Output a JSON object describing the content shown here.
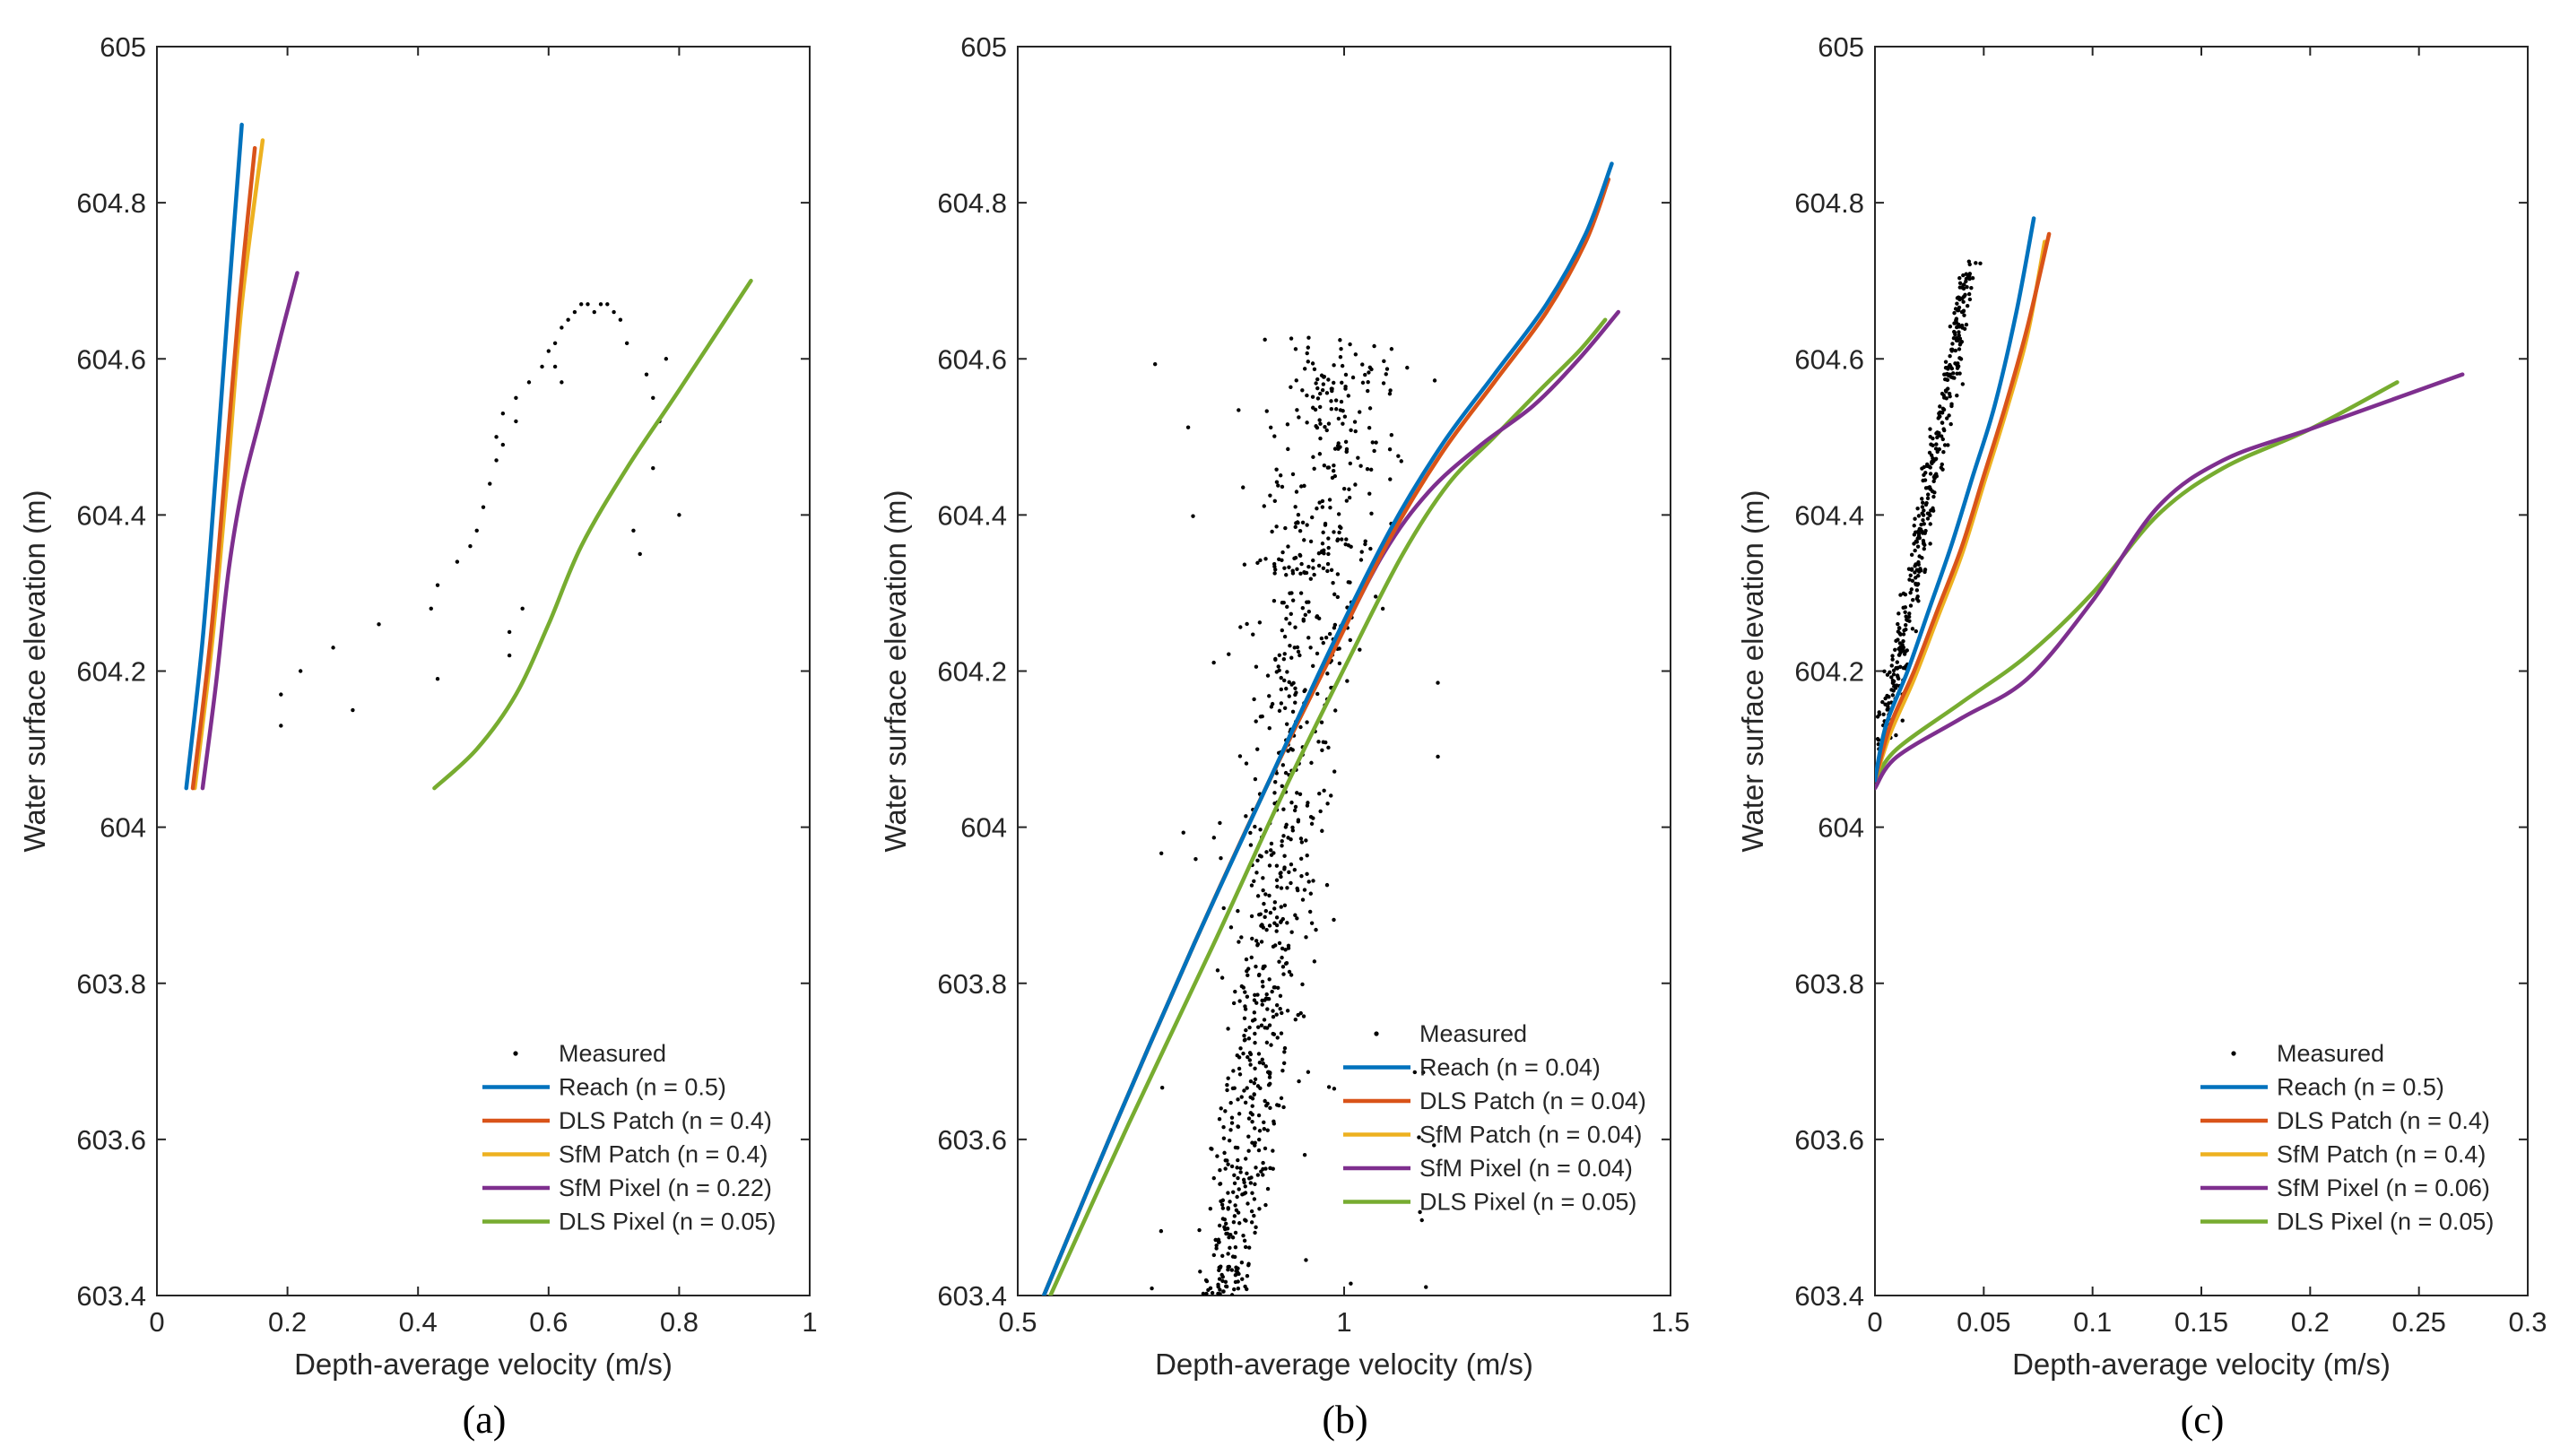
{
  "colors": {
    "measured": "#000000",
    "reach": "#0072BD",
    "dls_patch": "#D95319",
    "sfm_patch": "#EDB120",
    "sfm_pixel": "#7E2F8E",
    "dls_pixel": "#77AC30",
    "axis": "#262626"
  },
  "chart_data": [
    {
      "type": "line",
      "panel_label": "(a)",
      "xlabel": "Depth-average velocity (m/s)",
      "ylabel": "Water surface elevation (m)",
      "xlim": [
        0,
        1
      ],
      "ylim": [
        603.4,
        605
      ],
      "xticks": [
        0,
        0.2,
        0.4,
        0.6,
        0.8,
        1
      ],
      "xtick_labels": [
        "0",
        "0.2",
        "0.4",
        "0.6",
        "0.8",
        "1"
      ],
      "yticks": [
        603.4,
        603.6,
        603.8,
        604,
        604.2,
        604.4,
        604.6,
        604.8,
        605
      ],
      "ytick_labels": [
        "603.4",
        "603.6",
        "603.8",
        "604",
        "604.2",
        "604.4",
        "604.6",
        "604.8",
        "605"
      ],
      "legend_position": "bottom-right",
      "scatter": {
        "name": "Measured",
        "x": [
          0.19,
          0.19,
          0.22,
          0.27,
          0.3,
          0.34,
          0.42,
          0.43,
          0.43,
          0.46,
          0.48,
          0.49,
          0.5,
          0.51,
          0.52,
          0.52,
          0.53,
          0.53,
          0.54,
          0.54,
          0.55,
          0.55,
          0.56,
          0.57,
          0.59,
          0.6,
          0.61,
          0.61,
          0.62,
          0.62,
          0.63,
          0.64,
          0.65,
          0.66,
          0.67,
          0.68,
          0.69,
          0.7,
          0.71,
          0.72,
          0.73,
          0.74,
          0.75,
          0.76,
          0.76,
          0.77,
          0.78,
          0.8
        ],
        "y": [
          604.17,
          604.13,
          604.2,
          604.23,
          604.15,
          604.26,
          604.28,
          604.31,
          604.19,
          604.34,
          604.36,
          604.38,
          604.41,
          604.44,
          604.47,
          604.5,
          604.53,
          604.49,
          604.22,
          604.25,
          604.55,
          604.52,
          604.28,
          604.57,
          604.59,
          604.61,
          604.62,
          604.59,
          604.57,
          604.64,
          604.65,
          604.66,
          604.67,
          604.67,
          604.66,
          604.67,
          604.67,
          604.66,
          604.65,
          604.62,
          604.38,
          604.35,
          604.58,
          604.55,
          604.46,
          604.52,
          604.6,
          604.4
        ]
      },
      "series": [
        {
          "name": "Reach (n = 0.5)",
          "color_key": "reach",
          "x": [
            0.045,
            0.07,
            0.09,
            0.11,
            0.13
          ],
          "y": [
            604.05,
            604.24,
            604.45,
            604.68,
            604.9
          ]
        },
        {
          "name": "DLS Patch (n = 0.4)",
          "color_key": "dls_patch",
          "x": [
            0.055,
            0.082,
            0.104,
            0.126,
            0.15
          ],
          "y": [
            604.05,
            604.24,
            604.45,
            604.67,
            604.87
          ]
        },
        {
          "name": "SfM Patch (n = 0.4)",
          "color_key": "sfm_patch",
          "x": [
            0.058,
            0.085,
            0.108,
            0.13,
            0.162
          ],
          "y": [
            604.05,
            604.24,
            604.45,
            604.67,
            604.88
          ]
        },
        {
          "name": "SfM Pixel (n = 0.22)",
          "color_key": "sfm_pixel",
          "x": [
            0.07,
            0.09,
            0.11,
            0.13,
            0.16,
            0.19,
            0.215
          ],
          "y": [
            604.05,
            604.18,
            604.33,
            604.43,
            604.53,
            604.63,
            604.71
          ]
        },
        {
          "name": "DLS Pixel (n = 0.05)",
          "color_key": "dls_pixel",
          "x": [
            0.425,
            0.49,
            0.55,
            0.6,
            0.65,
            0.72,
            0.8,
            0.91
          ],
          "y": [
            604.05,
            604.1,
            604.17,
            604.26,
            604.36,
            604.46,
            604.56,
            604.7
          ]
        }
      ]
    },
    {
      "type": "line",
      "panel_label": "(b)",
      "xlabel": "Depth-average velocity (m/s)",
      "ylabel": "Water surface elevation (m)",
      "xlim": [
        0.5,
        1.5
      ],
      "ylim": [
        603.4,
        605
      ],
      "xticks": [
        0.5,
        1,
        1.5
      ],
      "xtick_labels": [
        "0.5",
        "1",
        "1.5"
      ],
      "yticks": [
        603.4,
        603.6,
        603.8,
        604,
        604.2,
        604.4,
        604.6,
        604.8,
        605
      ],
      "ytick_labels": [
        "603.4",
        "603.6",
        "603.8",
        "604",
        "604.2",
        "604.4",
        "604.6",
        "604.8",
        "605"
      ],
      "legend_position": "bottom-right",
      "scatter_cloud": {
        "name": "Measured",
        "note_points": 900,
        "x_range": [
          0.73,
          1.15
        ],
        "y_range": [
          603.4,
          604.63
        ]
      },
      "series": [
        {
          "name": "Reach (n = 0.04)",
          "color_key": "reach",
          "x": [
            0.54,
            0.65,
            0.77,
            0.88,
            0.98,
            1.07,
            1.15,
            1.23,
            1.31,
            1.37,
            1.41
          ],
          "y": [
            603.4,
            603.62,
            603.85,
            604.05,
            604.23,
            604.38,
            604.49,
            604.58,
            604.67,
            604.76,
            604.85
          ]
        },
        {
          "name": "DLS Patch (n = 0.04)",
          "color_key": "dls_patch",
          "x": [
            0.54,
            0.65,
            0.77,
            0.88,
            0.98,
            1.07,
            1.15,
            1.23,
            1.31,
            1.37,
            1.405
          ],
          "y": [
            603.4,
            603.62,
            603.85,
            604.05,
            604.22,
            604.37,
            604.48,
            604.57,
            604.66,
            604.75,
            604.83
          ]
        },
        {
          "name": "SfM Patch (n = 0.04)",
          "color_key": "sfm_patch",
          "x": [
            0.54,
            0.65,
            0.77,
            0.88,
            0.98,
            1.07,
            1.15,
            1.23,
            1.31,
            1.37,
            1.4
          ],
          "y": [
            603.4,
            603.62,
            603.85,
            604.05,
            604.22,
            604.37,
            604.48,
            604.57,
            604.66,
            604.75,
            604.82
          ]
        },
        {
          "name": "SfM Pixel (n = 0.04)",
          "color_key": "sfm_pixel",
          "x": [
            0.54,
            0.65,
            0.77,
            0.88,
            0.98,
            1.06,
            1.13,
            1.21,
            1.29,
            1.36,
            1.42
          ],
          "y": [
            603.4,
            603.62,
            603.85,
            604.05,
            604.22,
            604.35,
            604.43,
            604.49,
            604.54,
            604.6,
            604.66
          ]
        },
        {
          "name": "DLS Pixel (n = 0.05)",
          "color_key": "dls_pixel",
          "x": [
            0.55,
            0.67,
            0.8,
            0.91,
            1.01,
            1.09,
            1.16,
            1.23,
            1.3,
            1.36,
            1.4
          ],
          "y": [
            603.4,
            603.62,
            603.85,
            604.05,
            604.22,
            604.35,
            604.44,
            604.5,
            604.56,
            604.61,
            604.65
          ]
        }
      ]
    },
    {
      "type": "line",
      "panel_label": "(c)",
      "xlabel": "Depth-average velocity (m/s)",
      "ylabel": "Water surface elevation (m)",
      "xlim": [
        0,
        0.3
      ],
      "ylim": [
        603.4,
        605
      ],
      "xticks": [
        0,
        0.05,
        0.1,
        0.15,
        0.2,
        0.25,
        0.3
      ],
      "xtick_labels": [
        "0",
        "0.05",
        "0.1",
        "0.15",
        "0.2",
        "0.25",
        "0.3"
      ],
      "yticks": [
        603.4,
        603.6,
        603.8,
        604,
        604.2,
        604.4,
        604.6,
        604.8,
        605
      ],
      "ytick_labels": [
        "603.4",
        "603.6",
        "603.8",
        "604",
        "604.2",
        "604.4",
        "604.6",
        "604.8",
        "605"
      ],
      "legend_position": "bottom-right",
      "scatter_cloud": {
        "name": "Measured",
        "note_points": 400,
        "x_range": [
          0.0,
          0.05
        ],
        "y_range": [
          604.1,
          604.73
        ]
      },
      "series": [
        {
          "name": "Reach (n = 0.5)",
          "color_key": "reach",
          "x": [
            0.0,
            0.005,
            0.015,
            0.025,
            0.035,
            0.045,
            0.055,
            0.065,
            0.073
          ],
          "y": [
            604.06,
            604.13,
            604.2,
            604.28,
            604.36,
            604.45,
            604.54,
            604.66,
            604.78
          ]
        },
        {
          "name": "DLS Patch (n = 0.4)",
          "color_key": "dls_patch",
          "x": [
            0.0,
            0.007,
            0.018,
            0.029,
            0.04,
            0.05,
            0.06,
            0.07,
            0.08
          ],
          "y": [
            604.06,
            604.13,
            604.2,
            604.28,
            604.36,
            604.45,
            604.54,
            604.64,
            604.76
          ]
        },
        {
          "name": "SfM Patch (n = 0.4)",
          "color_key": "sfm_patch",
          "x": [
            0.0,
            0.007,
            0.018,
            0.029,
            0.04,
            0.05,
            0.06,
            0.07,
            0.078
          ],
          "y": [
            604.06,
            604.12,
            604.19,
            604.27,
            604.35,
            604.44,
            604.53,
            604.63,
            604.75
          ]
        },
        {
          "name": "SfM Pixel (n = 0.06)",
          "color_key": "sfm_pixel",
          "x": [
            0.0,
            0.01,
            0.04,
            0.07,
            0.1,
            0.13,
            0.16,
            0.2,
            0.24,
            0.27
          ],
          "y": [
            604.05,
            604.09,
            604.14,
            604.19,
            604.29,
            604.41,
            604.47,
            604.51,
            604.55,
            604.58
          ]
        },
        {
          "name": "DLS Pixel (n = 0.05)",
          "color_key": "dls_pixel",
          "x": [
            0.0,
            0.01,
            0.04,
            0.07,
            0.1,
            0.13,
            0.16,
            0.2,
            0.24
          ],
          "y": [
            604.06,
            604.1,
            604.16,
            604.22,
            604.3,
            604.4,
            604.46,
            604.51,
            604.57
          ]
        }
      ]
    }
  ]
}
